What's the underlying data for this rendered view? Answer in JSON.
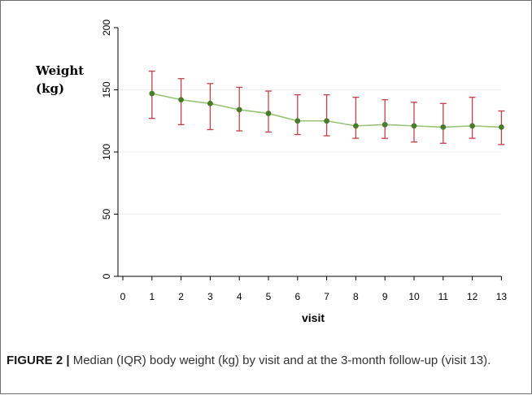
{
  "chart_data": {
    "type": "line",
    "xlabel": "visit",
    "ylabel_line1": "Weight",
    "ylabel_line2": "(kg)",
    "xlim": [
      0,
      13
    ],
    "ylim": [
      0,
      200
    ],
    "x_ticks": [
      0,
      1,
      2,
      3,
      4,
      5,
      6,
      7,
      8,
      9,
      10,
      11,
      12,
      13
    ],
    "y_ticks": [
      0,
      50,
      100,
      150,
      200
    ],
    "grid": true,
    "series": [
      {
        "x": [
          1,
          2,
          3,
          4,
          5,
          6,
          7,
          8,
          9,
          10,
          11,
          12,
          13
        ],
        "median": [
          147,
          142,
          139,
          134,
          131,
          125,
          125,
          121,
          122,
          121,
          120,
          121,
          120
        ],
        "q1": [
          127,
          122,
          118,
          117,
          116,
          114,
          113,
          111,
          111,
          108,
          107,
          111,
          106
        ],
        "q3": [
          165,
          159,
          155,
          152,
          149,
          146,
          146,
          144,
          142,
          140,
          139,
          144,
          133
        ]
      }
    ],
    "colors": {
      "line": "#97c374",
      "point": "#4a7a2b",
      "error_bar": "#c4414a",
      "grid": "#eeeeee",
      "axis": "#000000"
    }
  },
  "caption": {
    "label": "FIGURE 2 |",
    "text": " Median (IQR) body weight (kg) by visit and at the 3-month follow-up (visit 13)."
  }
}
